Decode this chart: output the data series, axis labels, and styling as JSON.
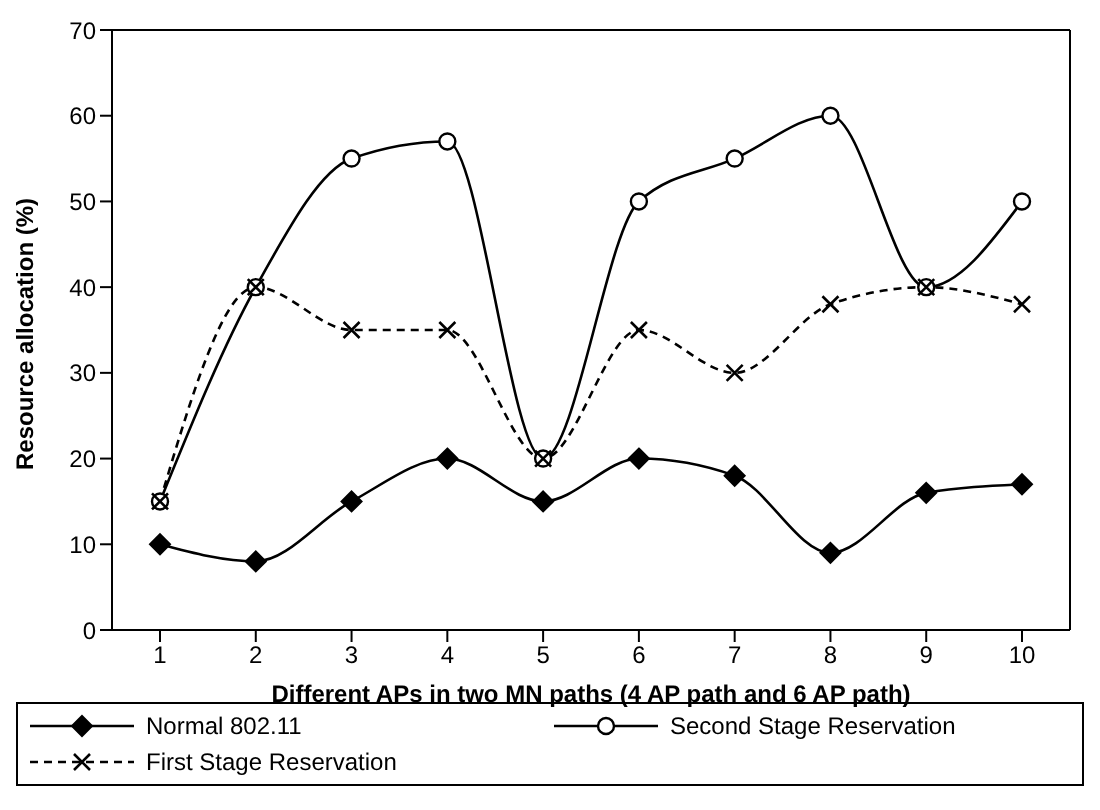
{
  "chart_data": {
    "type": "line",
    "xlabel": "Different APs in two MN paths (4 AP path and 6 AP path)",
    "ylabel": "Resource allocation (%)",
    "categories": [
      "1",
      "2",
      "3",
      "4",
      "5",
      "6",
      "7",
      "8",
      "9",
      "10"
    ],
    "ylim": [
      0,
      70
    ],
    "yticks": [
      0,
      10,
      20,
      30,
      40,
      50,
      60,
      70
    ],
    "legend": "bottom",
    "series": [
      {
        "name": "Normal 802.11",
        "color": "#000000",
        "marker": "diamond",
        "line_style": "solid",
        "values": [
          10,
          8,
          15,
          20,
          15,
          20,
          18,
          9,
          16,
          17
        ]
      },
      {
        "name": "Second Stage Reservation",
        "color": "#000000",
        "marker": "circle",
        "line_style": "solid",
        "values": [
          15,
          40,
          55,
          57,
          20,
          50,
          55,
          60,
          40,
          50
        ]
      },
      {
        "name": "First Stage Reservation",
        "color": "#000000",
        "marker": "cross",
        "line_style": "dashed",
        "values": [
          15,
          40,
          35,
          35,
          20,
          35,
          30,
          38,
          40,
          38
        ]
      }
    ]
  }
}
